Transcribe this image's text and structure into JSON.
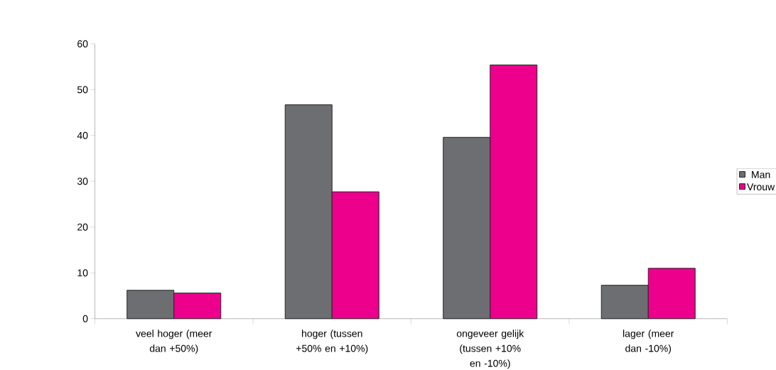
{
  "chart_data": {
    "type": "bar",
    "categories": [
      "veel hoger (meer dan +50%)",
      "hoger (tussen +50% en +10%)",
      "ongeveer gelijk (tussen +10% en -10%)",
      "lager (meer dan -10%)"
    ],
    "series": [
      {
        "name": "Man",
        "color": "#6d6e71",
        "values": [
          6.2,
          46.7,
          39.6,
          7.3
        ]
      },
      {
        "name": "Vrouw",
        "color": "#ec008c",
        "values": [
          5.6,
          27.7,
          55.4,
          11.0
        ]
      }
    ],
    "ylim": [
      0,
      60
    ],
    "yticks": [
      0,
      10,
      20,
      30,
      40,
      50,
      60
    ],
    "grid": false,
    "legend": "right"
  }
}
